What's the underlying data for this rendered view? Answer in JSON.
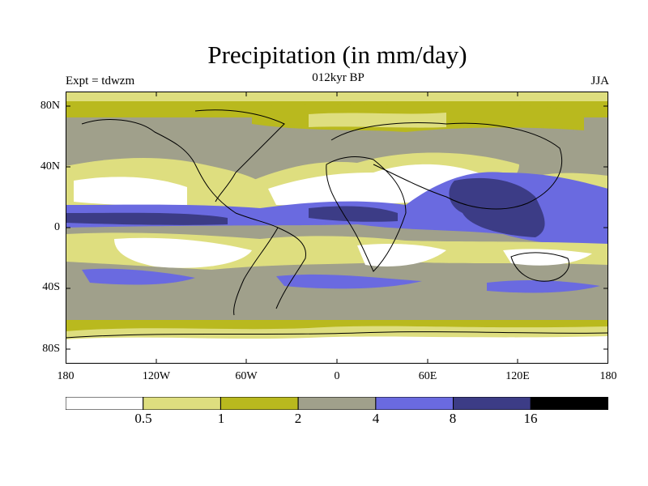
{
  "header": {
    "title": "Precipitation (in mm/day)",
    "experiment": "Expt = tdwzm",
    "period": "012kyr BP",
    "season": "JJA"
  },
  "axes": {
    "lat_ticks": [
      "80N",
      "40N",
      "0",
      "40S",
      "80S"
    ],
    "lon_ticks": [
      "180",
      "120W",
      "60W",
      "0",
      "60E",
      "120E",
      "180"
    ]
  },
  "colorbar": {
    "colors": [
      "#ffffff",
      "#dede7f",
      "#b9b91e",
      "#a0a08b",
      "#6a6ae0",
      "#3c3c86",
      "#000000"
    ],
    "labels": [
      "0.5",
      "1",
      "2",
      "4",
      "8",
      "16"
    ]
  }
}
